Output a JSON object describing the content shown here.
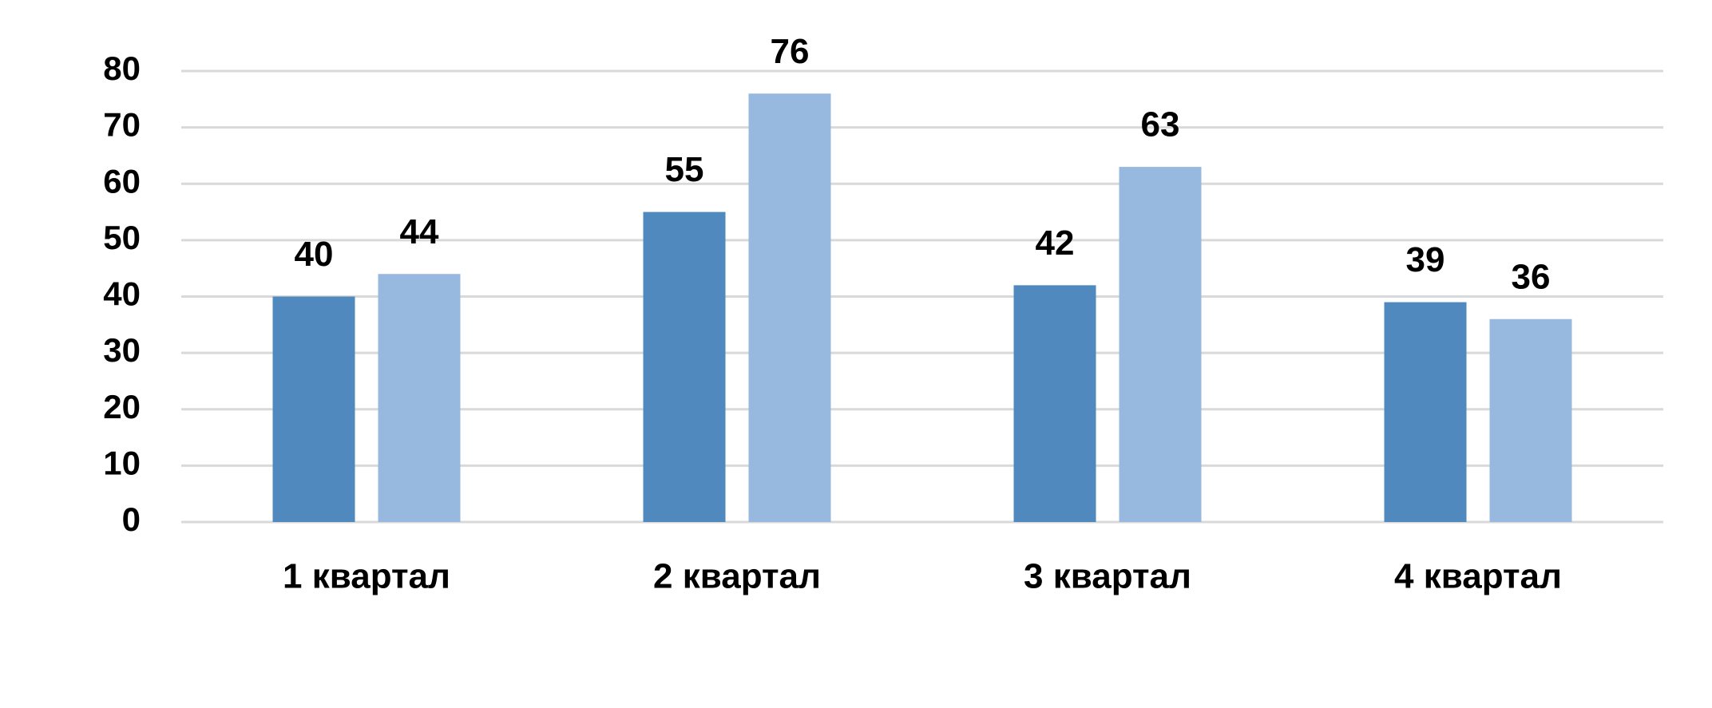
{
  "chart_data": {
    "type": "bar",
    "categories": [
      "1 квартал",
      "2 квартал",
      "3 квартал",
      "4 квартал"
    ],
    "series": [
      {
        "color": "#4f89bd",
        "values": [
          40,
          55,
          42,
          39
        ]
      },
      {
        "color": "#98b9df",
        "values": [
          44,
          76,
          63,
          36
        ]
      }
    ],
    "ylim": [
      0,
      80
    ],
    "yticks": [
      0,
      10,
      20,
      30,
      40,
      50,
      60,
      70,
      80
    ],
    "grid": true
  }
}
